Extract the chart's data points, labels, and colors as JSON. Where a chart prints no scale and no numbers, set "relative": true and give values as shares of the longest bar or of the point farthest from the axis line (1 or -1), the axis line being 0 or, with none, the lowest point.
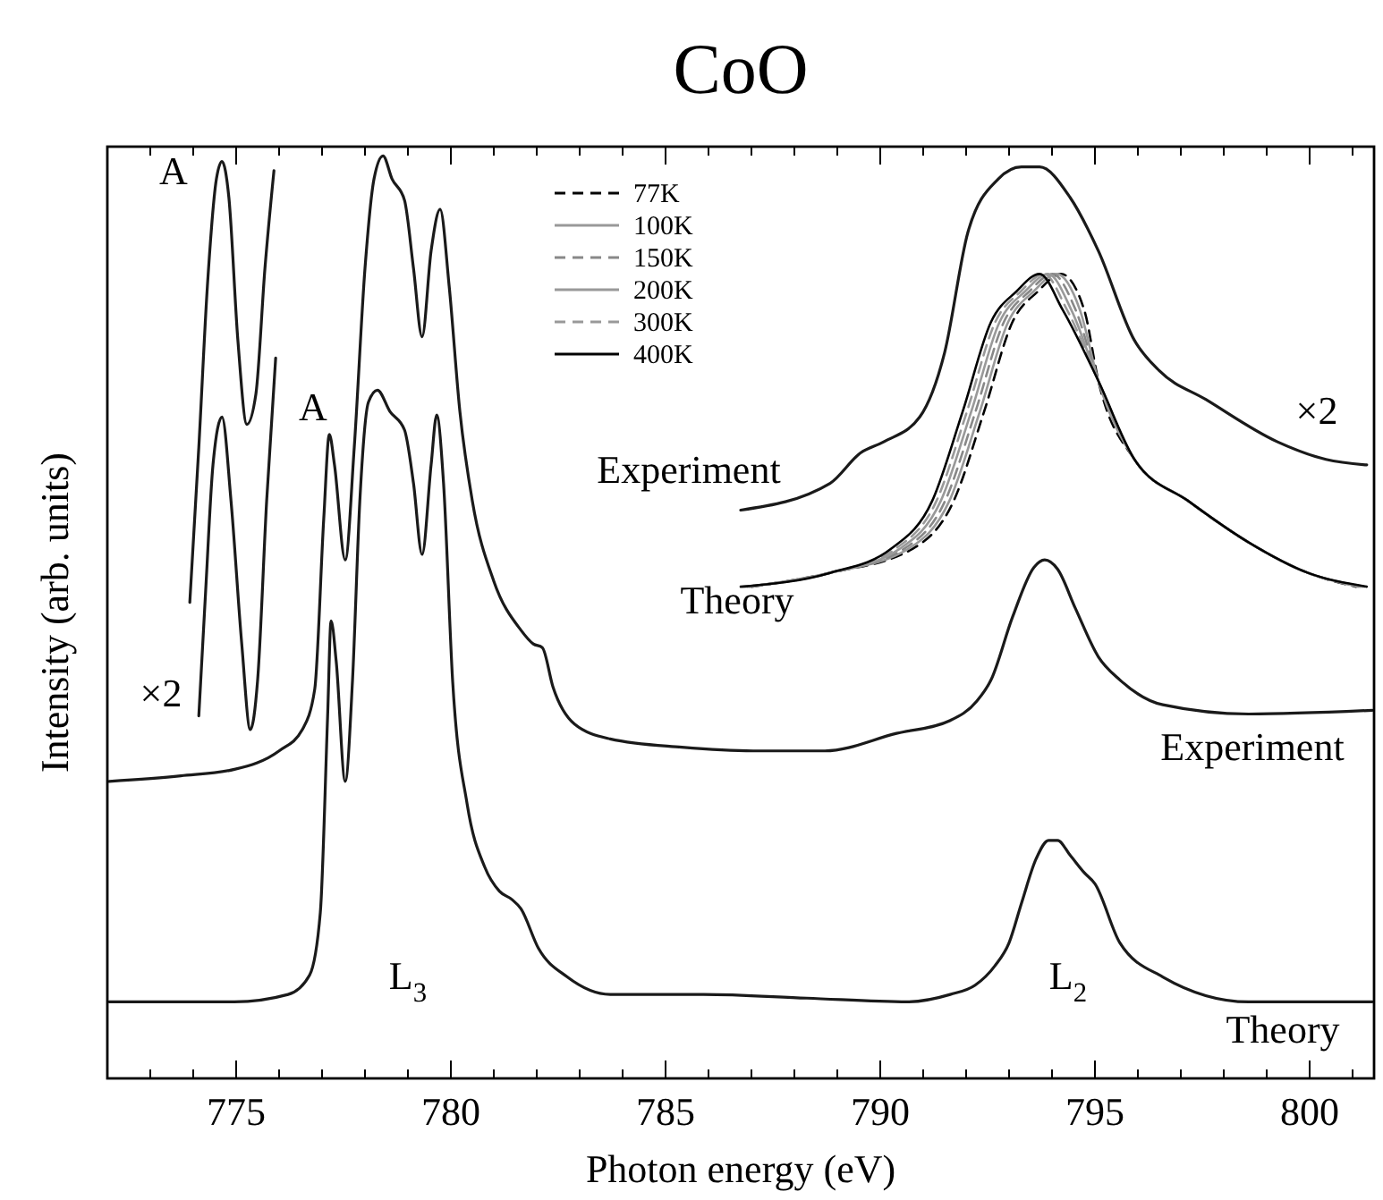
{
  "chart_data": {
    "type": "line",
    "title": "CoO",
    "xlabel": "Photon energy (eV)",
    "ylabel": "Intensity (arb. units)",
    "relative": true,
    "tick_labels": "x",
    "grid": false,
    "legend": "top",
    "xlim": [
      772,
      801.5
    ],
    "xticks": [
      {
        "value": 773,
        "label": null
      },
      {
        "value": 774,
        "label": null
      },
      775,
      {
        "value": 776,
        "label": null
      },
      {
        "value": 777,
        "label": null
      },
      {
        "value": 778,
        "label": null
      },
      {
        "value": 779,
        "label": null
      },
      780,
      {
        "value": 781,
        "label": null
      },
      {
        "value": 782,
        "label": null
      },
      {
        "value": 783,
        "label": null
      },
      {
        "value": 784,
        "label": null
      },
      785,
      {
        "value": 786,
        "label": null
      },
      {
        "value": 787,
        "label": null
      },
      {
        "value": 788,
        "label": null
      },
      {
        "value": 789,
        "label": null
      },
      790,
      {
        "value": 791,
        "label": null
      },
      {
        "value": 792,
        "label": null
      },
      {
        "value": 793,
        "label": null
      },
      {
        "value": 794,
        "label": null
      },
      795,
      {
        "value": 796,
        "label": null
      },
      {
        "value": 797,
        "label": null
      },
      {
        "value": 798,
        "label": null
      },
      {
        "value": 799,
        "label": null
      },
      800,
      {
        "value": 801,
        "label": null
      }
    ],
    "series": [
      {
        "color": "#1a1a1a",
        "line_style": "solid",
        "x": [
          772.04,
          773.71,
          774.96,
          776.0,
          776.54,
          776.83,
          777.04,
          777.17,
          777.29,
          777.54,
          777.75,
          778.0,
          778.21,
          778.42,
          778.63,
          778.92,
          779.13,
          779.33,
          779.54,
          779.75,
          779.96,
          780.21,
          780.5,
          781.0,
          781.63,
          781.92,
          782.13,
          782.38,
          782.88,
          783.71,
          785.38,
          787.04,
          788.71,
          790.38,
          791.63,
          792.25,
          792.58,
          793.08,
          793.58,
          793.83,
          794.13,
          794.54,
          795.08,
          795.58,
          796.58,
          798.58,
          801.46
        ],
        "values": [
          0.322,
          0.328,
          0.335,
          0.355,
          0.378,
          0.422,
          0.607,
          0.698,
          0.665,
          0.562,
          0.684,
          0.878,
          0.975,
          1.0,
          0.975,
          0.952,
          0.878,
          0.804,
          0.897,
          0.942,
          0.859,
          0.723,
          0.626,
          0.539,
          0.486,
          0.471,
          0.467,
          0.424,
          0.384,
          0.368,
          0.359,
          0.355,
          0.355,
          0.374,
          0.388,
          0.409,
          0.432,
          0.5,
          0.554,
          0.562,
          0.552,
          0.51,
          0.457,
          0.432,
          0.405,
          0.395,
          0.399
        ]
      },
      {
        "color": "#1a1a1a",
        "line_style": "solid",
        "x": [
          772.04,
          774.96,
          776.21,
          776.71,
          776.96,
          777.13,
          777.21,
          777.33,
          777.54,
          777.71,
          777.88,
          778.08,
          778.29,
          778.58,
          778.92,
          779.13,
          779.33,
          779.54,
          779.67,
          779.83,
          780.04,
          780.38,
          780.79,
          781.13,
          781.42,
          781.63,
          782.04,
          782.71,
          783.71,
          785.88,
          788.29,
          790.63,
          791.63,
          792.21,
          792.67,
          793.0,
          793.29,
          793.63,
          793.92,
          794.13,
          794.42,
          794.75,
          795.0,
          795.58,
          796.58,
          798.58,
          801.46
        ],
        "values": [
          0.083,
          0.083,
          0.091,
          0.112,
          0.18,
          0.393,
          0.496,
          0.452,
          0.322,
          0.432,
          0.626,
          0.733,
          0.746,
          0.723,
          0.703,
          0.645,
          0.568,
          0.665,
          0.719,
          0.645,
          0.432,
          0.297,
          0.229,
          0.203,
          0.194,
          0.184,
          0.141,
          0.11,
          0.091,
          0.091,
          0.087,
          0.083,
          0.091,
          0.101,
          0.122,
          0.147,
          0.19,
          0.238,
          0.258,
          0.258,
          0.242,
          0.223,
          0.211,
          0.147,
          0.11,
          0.083,
          0.083
        ]
      },
      {
        "color": "#1a1a1a",
        "line_style": "solid",
        "x": [
          773.92,
          774.13,
          774.33,
          774.54,
          774.67,
          774.83,
          775.04,
          775.25,
          775.46,
          775.67,
          775.88
        ],
        "values": [
          0.516,
          0.684,
          0.859,
          0.975,
          0.994,
          0.955,
          0.8,
          0.709,
          0.742,
          0.878,
          0.984
        ]
      },
      {
        "color": "#1a1a1a",
        "line_style": "solid",
        "x": [
          774.13,
          774.29,
          774.46,
          774.67,
          774.88,
          775.13,
          775.33,
          775.5,
          775.71,
          775.92
        ],
        "values": [
          0.393,
          0.529,
          0.665,
          0.717,
          0.626,
          0.471,
          0.378,
          0.432,
          0.626,
          0.781
        ]
      },
      {
        "color": "#1a1a1a",
        "line_style": "solid",
        "x": [
          786.75,
          788.83,
          789.54,
          790.08,
          790.92,
          791.5,
          792.04,
          792.75,
          793.29,
          793.71,
          794.42,
          795.08,
          795.92,
          796.5,
          797.58,
          799.25,
          800.38,
          801.33
        ],
        "values": [
          0.616,
          0.645,
          0.678,
          0.69,
          0.717,
          0.787,
          0.917,
          0.975,
          0.988,
          0.988,
          0.955,
          0.897,
          0.8,
          0.767,
          0.736,
          0.69,
          0.671,
          0.665
        ]
      },
      {
        "name": "77K",
        "color": "#000000",
        "line_style": "dashed",
        "x": [
          787.0,
          788.83,
          790.75,
          791.71,
          792.42,
          793.08,
          793.67,
          794.21,
          794.75,
          795.08,
          795.92,
          797.17,
          798.58,
          799.96,
          801.08
        ],
        "values": [
          0.533,
          0.548,
          0.574,
          0.626,
          0.723,
          0.82,
          0.853,
          0.872,
          0.833,
          0.756,
          0.671,
          0.626,
          0.581,
          0.548,
          0.533
        ]
      },
      {
        "name": "100K",
        "color": "#999999",
        "line_style": "solid",
        "x": [
          786.95,
          788.83,
          790.65,
          791.61,
          792.32,
          792.98,
          793.57,
          794.11,
          794.65,
          795.08,
          795.92,
          797.17,
          798.58,
          799.96,
          801.13
        ],
        "values": [
          0.533,
          0.548,
          0.574,
          0.626,
          0.723,
          0.82,
          0.853,
          0.872,
          0.833,
          0.756,
          0.671,
          0.626,
          0.581,
          0.548,
          0.533
        ]
      },
      {
        "name": "150K",
        "color": "#888888",
        "line_style": "dashed",
        "x": [
          786.9,
          788.83,
          790.55,
          791.51,
          792.22,
          792.88,
          793.47,
          794.01,
          794.55,
          795.08,
          795.92,
          797.17,
          798.58,
          799.96,
          801.18
        ],
        "values": [
          0.533,
          0.548,
          0.574,
          0.626,
          0.723,
          0.82,
          0.853,
          0.872,
          0.833,
          0.756,
          0.671,
          0.626,
          0.581,
          0.548,
          0.533
        ]
      },
      {
        "name": "200K",
        "color": "#999999",
        "line_style": "solid",
        "x": [
          786.85,
          788.83,
          790.45,
          791.41,
          792.12,
          792.78,
          793.37,
          793.91,
          794.45,
          795.08,
          795.92,
          797.17,
          798.58,
          799.96,
          801.23
        ],
        "values": [
          0.533,
          0.548,
          0.574,
          0.626,
          0.723,
          0.82,
          0.853,
          0.872,
          0.833,
          0.756,
          0.671,
          0.626,
          0.581,
          0.548,
          0.533
        ]
      },
      {
        "name": "300K",
        "color": "#999999",
        "line_style": "dashed",
        "x": [
          786.8,
          788.83,
          790.35,
          791.31,
          792.02,
          792.68,
          793.27,
          793.81,
          794.35,
          795.08,
          795.92,
          797.17,
          798.58,
          799.96,
          801.28
        ],
        "values": [
          0.533,
          0.548,
          0.574,
          0.626,
          0.723,
          0.82,
          0.853,
          0.872,
          0.833,
          0.756,
          0.671,
          0.626,
          0.581,
          0.548,
          0.533
        ]
      },
      {
        "name": "400K",
        "color": "#000000",
        "line_style": "solid",
        "x": [
          786.75,
          788.83,
          790.25,
          791.21,
          791.92,
          792.58,
          793.17,
          793.71,
          794.25,
          795.08,
          795.92,
          797.17,
          798.58,
          799.96,
          801.33
        ],
        "values": [
          0.533,
          0.548,
          0.574,
          0.626,
          0.723,
          0.82,
          0.853,
          0.872,
          0.833,
          0.756,
          0.671,
          0.626,
          0.581,
          0.548,
          0.533
        ]
      }
    ],
    "annotations": [
      "A",
      "A",
      "×2",
      "×2",
      "Experiment",
      "Theory",
      "Experiment",
      "Theory",
      "L$_{3}$",
      "L$_{2}$"
    ]
  }
}
